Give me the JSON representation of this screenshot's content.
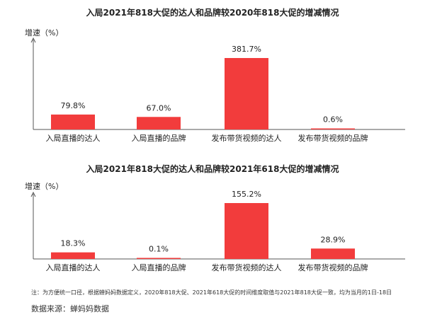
{
  "colors": {
    "bar": "#f23c3c",
    "axis": "#555555",
    "text": "#222222"
  },
  "chart_data": [
    {
      "type": "bar",
      "title": "入局2021年818大促的达人和品牌较2020年818大促的增减情况",
      "ylabel": "增速（%）",
      "categories": [
        "入局直播的达人",
        "入局直播的品牌",
        "发布带货视频的达人",
        "发布带货视频的品牌"
      ],
      "values": [
        79.8,
        67.0,
        381.7,
        0.6
      ],
      "value_labels": [
        "79.8%",
        "67.0%",
        "381.7%",
        "0.6%"
      ],
      "ylim": [
        0,
        400
      ],
      "grid": false,
      "legend": "none"
    },
    {
      "type": "bar",
      "title": "入局2021年818大促的达人和品牌较2021年618大促的增减情况",
      "ylabel": "增速（%）",
      "categories": [
        "入局直播的达人",
        "入局直播的品牌",
        "发布带货视频的达人",
        "发布带货视频的品牌"
      ],
      "values": [
        18.3,
        0.1,
        155.2,
        28.9
      ],
      "value_labels": [
        "18.3%",
        "0.1%",
        "155.2%",
        "28.9%"
      ],
      "ylim": [
        0,
        160
      ],
      "grid": false,
      "legend": "none"
    }
  ],
  "footnote": "注：为方便统一口径，根据蝉妈妈数据定义，2020年818大促、2021年618大促的时间维度取值与2021年818大促一致，均为当月的1日-18日",
  "source": "数据来源：蝉妈妈数据"
}
